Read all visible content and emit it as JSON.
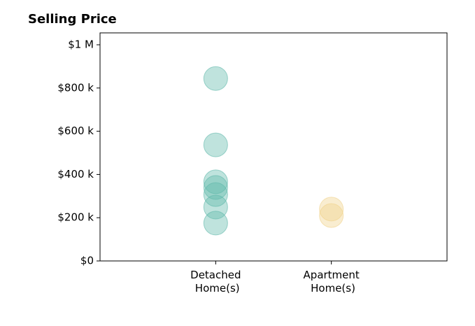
{
  "chart_data": {
    "type": "strip",
    "title": "Selling Price",
    "categories": [
      "Detached Home(s)",
      "Apartment Home(s)"
    ],
    "colors": [
      "#5fb8aa",
      "#f0d28a"
    ],
    "values": [
      [
        844000,
        537000,
        366000,
        340000,
        307000,
        249000,
        175000
      ],
      [
        240000,
        210000
      ]
    ],
    "ylim": [
      0,
      1055000
    ],
    "yticks": [
      {
        "value": 0,
        "label": "$0"
      },
      {
        "value": 200000,
        "label": "$200 k"
      },
      {
        "value": 400000,
        "label": "$400 k"
      },
      {
        "value": 600000,
        "label": "$600 k"
      },
      {
        "value": 800000,
        "label": "$800 k"
      },
      {
        "value": 1000000,
        "label": "$1 M"
      }
    ]
  }
}
